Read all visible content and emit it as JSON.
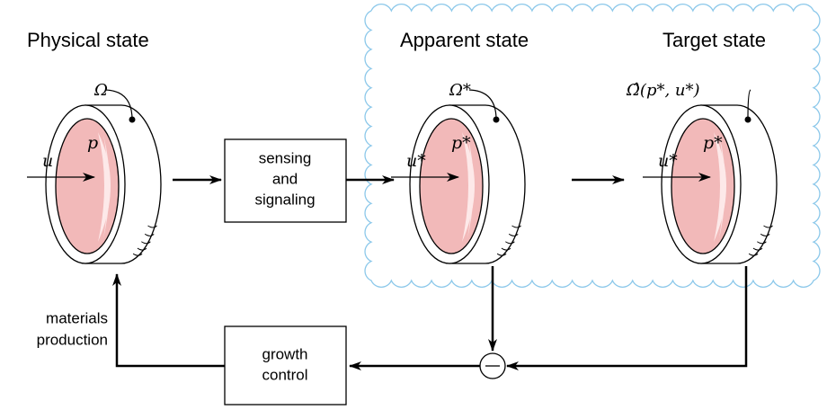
{
  "nodes": [
    {
      "title": "Physical state",
      "omega": "Ω",
      "u": "u",
      "p": "p"
    },
    {
      "title": "Apparent state",
      "omega": "Ω*",
      "u": "u*",
      "p": "p*"
    },
    {
      "title": "Target state",
      "omega": "Ω̂(p*, u*)",
      "u": "u*",
      "p": "p*"
    }
  ],
  "blocks": [
    {
      "lines": [
        "sensing",
        "and",
        "signaling"
      ]
    },
    {
      "lines": [
        "growth",
        "control"
      ]
    }
  ],
  "feedback_label": [
    "materials",
    "production"
  ]
}
